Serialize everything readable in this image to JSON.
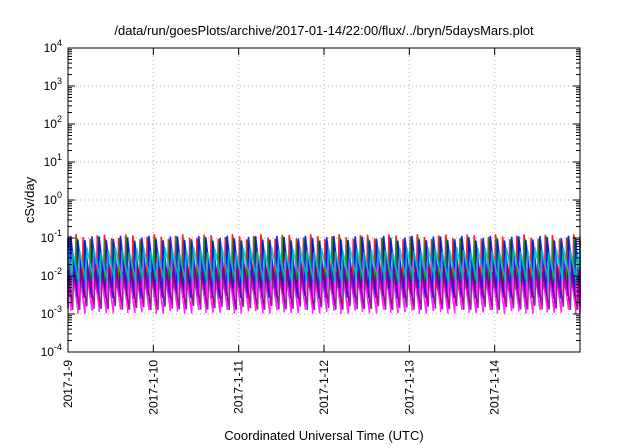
{
  "chart_data": {
    "type": "line",
    "title": "/data/run/goesPlots/archive/2017-01-14/22:00/flux/../bryn/5daysMars.plot",
    "xlabel": "Coordinated Universal Time (UTC)",
    "ylabel": "cSv/day",
    "yscale": "log",
    "ylim": [
      0.0001,
      10000
    ],
    "xlim_days": [
      0,
      6
    ],
    "x_ticks": [
      {
        "day": 0,
        "label": "2017-1-9"
      },
      {
        "day": 1,
        "label": "2017-1-10"
      },
      {
        "day": 2,
        "label": "2017-1-11"
      },
      {
        "day": 3,
        "label": "2017-1-12"
      },
      {
        "day": 4,
        "label": "2017-1-13"
      },
      {
        "day": 5,
        "label": "2017-1-14"
      }
    ],
    "y_ticks": [
      {
        "value": 0.0001,
        "base": "10",
        "exp": "-4"
      },
      {
        "value": 0.001,
        "base": "10",
        "exp": "-3"
      },
      {
        "value": 0.01,
        "base": "10",
        "exp": "-2"
      },
      {
        "value": 0.1,
        "base": "10",
        "exp": "-1"
      },
      {
        "value": 1,
        "base": "10",
        "exp": "0"
      },
      {
        "value": 10,
        "base": "10",
        "exp": "1"
      },
      {
        "value": 100,
        "base": "10",
        "exp": "2"
      },
      {
        "value": 1000,
        "base": "10",
        "exp": "3"
      },
      {
        "value": 10000,
        "base": "10",
        "exp": "4"
      }
    ],
    "grid": true,
    "pattern": {
      "cycles_per_day": 12,
      "note_omitted": true
    },
    "series": [
      {
        "color": "#ff0000",
        "peak": 0.11,
        "trough": 0.005
      },
      {
        "color": "#00a000",
        "peak": 0.095,
        "trough": 0.004
      },
      {
        "color": "#0000ff",
        "peak": 0.1,
        "trough": 0.003
      },
      {
        "color": "#ff00ff",
        "peak": 0.02,
        "trough": 0.0012
      },
      {
        "color": "#00c0c0",
        "peak": 0.05,
        "trough": 0.008
      },
      {
        "color": "#800080",
        "peak": 0.015,
        "trough": 0.0015
      }
    ]
  }
}
